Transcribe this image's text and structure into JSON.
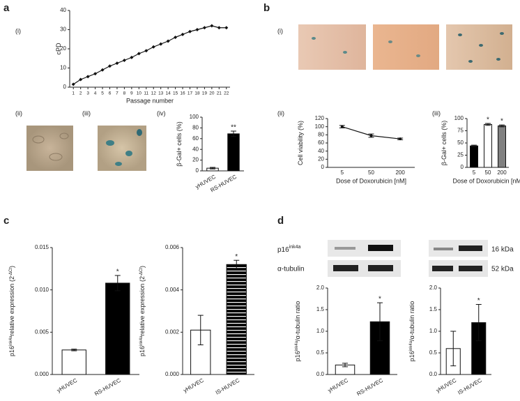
{
  "labels": {
    "a": "a",
    "a_i": "(i)",
    "a_ii": "(ii)",
    "a_iii": "(iii)",
    "a_iv": "(iv)",
    "b": "b",
    "b_i": "(i)",
    "b_ii": "(ii)",
    "b_iii": "(iii)",
    "c": "c",
    "d": "d"
  },
  "blot": {
    "row1": [
      "p16",
      "ink4a"
    ],
    "row2": "α-tubulin",
    "size1": "16 kDa",
    "size2": "52 kDa"
  },
  "chart_data": [
    {
      "type": "line",
      "x": [
        1,
        2,
        3,
        4,
        5,
        6,
        7,
        8,
        9,
        10,
        11,
        12,
        13,
        14,
        15,
        16,
        17,
        18,
        19,
        20,
        21,
        22
      ],
      "series": [
        {
          "name": "cPD",
          "color": "#111111",
          "values": [
            1.5,
            4,
            5.5,
            7,
            9,
            11,
            12.5,
            14,
            15.5,
            17.5,
            19,
            21,
            22.5,
            24,
            26,
            27.5,
            29,
            30,
            31,
            32,
            31,
            31
          ]
        }
      ],
      "xlim": [
        0.5,
        22.5
      ],
      "xticks": [
        1,
        2,
        3,
        4,
        5,
        6,
        7,
        8,
        9,
        10,
        11,
        12,
        13,
        14,
        15,
        16,
        17,
        18,
        19,
        20,
        21,
        22
      ],
      "ylim": [
        0,
        40
      ],
      "yticks": [
        0,
        10,
        20,
        30,
        40
      ],
      "xlabel": "Passage number",
      "ylabel": [
        "cPD"
      ]
    },
    {
      "type": "bar",
      "categories": [
        "yHUVEC",
        "RS-HUVEC"
      ],
      "series": [
        {
          "name": "β-Gal+ cells",
          "values": [
            5,
            69
          ],
          "errors": [
            1.5,
            5
          ],
          "colors": [
            "#ffffff",
            "#000000"
          ],
          "annotations": [
            null,
            "**"
          ]
        }
      ],
      "ylim": [
        0,
        100
      ],
      "yticks": [
        0,
        20,
        40,
        60,
        80,
        100
      ],
      "ylabel": [
        "β-Gal+ cells (%)"
      ],
      "rotate_labels": true
    },
    {
      "type": "line",
      "categories": [
        "5",
        "50",
        "200"
      ],
      "series": [
        {
          "name": "Cell viability",
          "color": "#111111",
          "values": [
            100,
            78,
            70
          ],
          "errors": [
            3,
            4,
            2
          ]
        }
      ],
      "ylim": [
        0,
        120
      ],
      "yticks": [
        0,
        20,
        40,
        60,
        80,
        100,
        120
      ],
      "xlabel": "Dose of Doxorubicin [nM]",
      "ylabel": [
        "Cell viability (%)"
      ]
    },
    {
      "type": "bar",
      "categories": [
        "5",
        "50",
        "200"
      ],
      "series": [
        {
          "name": "β-Gal+ cells",
          "values": [
            44,
            88,
            85
          ],
          "errors": [
            1.5,
            2,
            2
          ],
          "colors": [
            "#000000",
            "#ffffff",
            "#808080"
          ],
          "annotations": [
            null,
            "*",
            "*"
          ]
        }
      ],
      "ylim": [
        0,
        100
      ],
      "yticks": [
        0,
        25,
        50,
        75,
        100
      ],
      "xlabel": "Dose of Doxorubicin [nM]",
      "ylabel": [
        "β-Gal+ cells (%)"
      ],
      "rotate_labels": false
    },
    {
      "type": "bar",
      "categories": [
        "yHUVEC",
        "RS-HUVEC"
      ],
      "series": [
        {
          "name": "p16",
          "values": [
            0.0029,
            0.0108
          ],
          "errors": [
            0.0001,
            0.0009
          ],
          "colors": [
            "#ffffff",
            "#000000"
          ],
          "annotations": [
            null,
            "*"
          ]
        }
      ],
      "ylim": [
        0,
        0.015
      ],
      "yticks": [
        {
          "value": 0,
          "label": "0.000"
        },
        {
          "value": 0.005,
          "label": "0.005"
        },
        {
          "value": 0.01,
          "label": "0.010"
        },
        {
          "value": 0.015,
          "label": "0.015"
        }
      ],
      "ylabel": [
        "p16",
        "ink4a",
        "relative expression (2",
        "-ΔCt",
        ")"
      ],
      "rotate_labels": true
    },
    {
      "type": "bar",
      "categories": [
        "yHUVEC",
        "IS-HUVEC"
      ],
      "series": [
        {
          "name": "p16",
          "values": [
            0.0021,
            0.0052
          ],
          "errors": [
            0.0007,
            0.0002
          ],
          "colors": [
            "#ffffff",
            "#000000"
          ],
          "hatch": [
            false,
            true
          ],
          "annotations": [
            null,
            "*"
          ]
        }
      ],
      "ylim": [
        0,
        0.006
      ],
      "yticks": [
        {
          "value": 0,
          "label": "0.000"
        },
        {
          "value": 0.002,
          "label": "0.002"
        },
        {
          "value": 0.004,
          "label": "0.004"
        },
        {
          "value": 0.006,
          "label": "0.006"
        }
      ],
      "ylabel": [
        "p16",
        "ink4a",
        "relative expression (2",
        "-ΔCt",
        ")"
      ],
      "rotate_labels": true
    },
    {
      "type": "bar",
      "categories": [
        "yHUVEC",
        "RS-HUVEC"
      ],
      "series": [
        {
          "name": "ratio",
          "values": [
            0.22,
            1.22
          ],
          "errors": [
            0.04,
            0.44
          ],
          "colors": [
            "#ffffff",
            "#000000"
          ],
          "annotations": [
            null,
            "*"
          ]
        }
      ],
      "ylim": [
        0,
        2
      ],
      "yticks": [
        {
          "value": 0,
          "label": "0.0"
        },
        {
          "value": 0.5,
          "label": "0.5"
        },
        {
          "value": 1,
          "label": "1.0"
        },
        {
          "value": 1.5,
          "label": "1.5"
        },
        {
          "value": 2,
          "label": "2.0"
        }
      ],
      "ylabel": [
        "p16",
        "ink4a",
        "/α-tubulin ratio"
      ],
      "rotate_labels": true
    },
    {
      "type": "bar",
      "categories": [
        "yHUVEC",
        "IS-HUVEC"
      ],
      "series": [
        {
          "name": "ratio",
          "values": [
            0.6,
            1.2
          ],
          "errors": [
            0.4,
            0.42
          ],
          "colors": [
            "#ffffff",
            "#000000"
          ],
          "annotations": [
            null,
            "*"
          ]
        }
      ],
      "ylim": [
        0,
        2
      ],
      "yticks": [
        {
          "value": 0,
          "label": "0.0"
        },
        {
          "value": 0.5,
          "label": "0.5"
        },
        {
          "value": 1,
          "label": "1.0"
        },
        {
          "value": 1.5,
          "label": "1.5"
        },
        {
          "value": 2,
          "label": "2.0"
        }
      ],
      "ylabel": [
        "p16",
        "ink4a",
        "/α-tubulin ratio"
      ],
      "rotate_labels": true
    }
  ]
}
